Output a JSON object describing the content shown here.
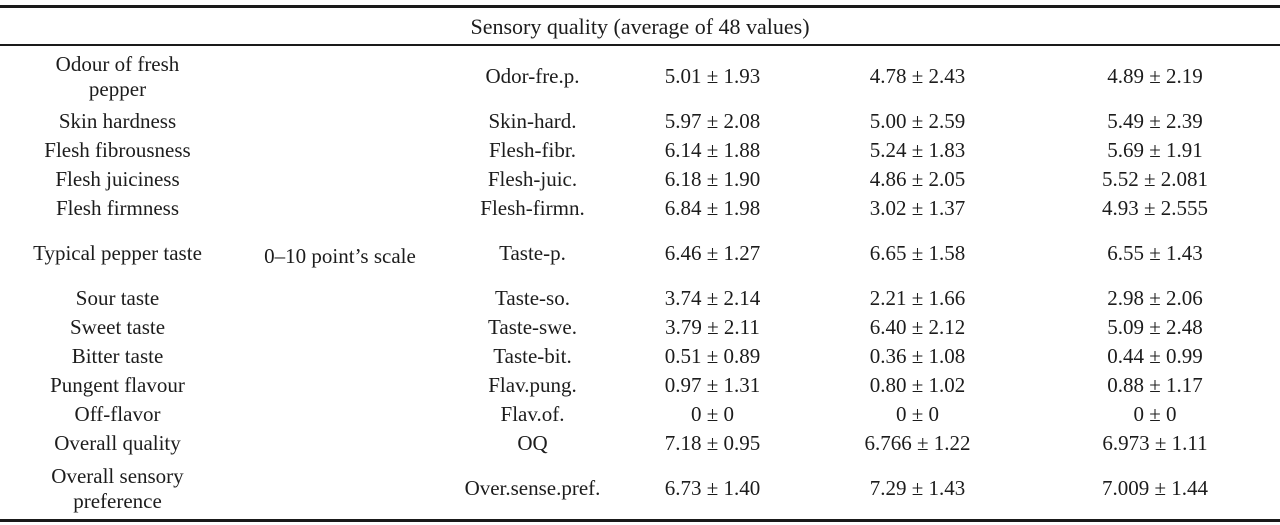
{
  "table": {
    "title": "Sensory quality (average of 48 values)",
    "scale_label": "0–10 point’s scale",
    "rows": [
      {
        "attribute": "Odour of fresh pepper",
        "abbr": "Odor-fre.p.",
        "values": [
          "5.01 ± 1.93",
          "4.78 ± 2.43",
          "4.89 ± 2.19"
        ]
      },
      {
        "attribute": "Skin hardness",
        "abbr": "Skin-hard.",
        "values": [
          "5.97 ± 2.08",
          "5.00 ± 2.59",
          "5.49 ± 2.39"
        ]
      },
      {
        "attribute": "Flesh fibrousness",
        "abbr": "Flesh-fibr.",
        "values": [
          "6.14 ± 1.88",
          "5.24 ± 1.83",
          "5.69 ± 1.91"
        ]
      },
      {
        "attribute": "Flesh juiciness",
        "abbr": "Flesh-juic.",
        "values": [
          "6.18 ± 1.90",
          "4.86 ± 2.05",
          "5.52 ± 2.081"
        ]
      },
      {
        "attribute": "Flesh firmness",
        "abbr": "Flesh-firmn.",
        "values": [
          "6.84 ± 1.98",
          "3.02 ± 1.37",
          "4.93 ± 2.555"
        ]
      },
      {
        "attribute": "Typical pepper taste",
        "abbr": "Taste-p.",
        "values": [
          "6.46 ± 1.27",
          "6.65 ± 1.58",
          "6.55 ± 1.43"
        ]
      },
      {
        "attribute": "Sour taste",
        "abbr": "Taste-so.",
        "values": [
          "3.74 ± 2.14",
          "2.21 ± 1.66",
          "2.98 ± 2.06"
        ]
      },
      {
        "attribute": "Sweet taste",
        "abbr": "Taste-swe.",
        "values": [
          "3.79 ± 2.11",
          "6.40 ± 2.12",
          "5.09 ± 2.48"
        ]
      },
      {
        "attribute": "Bitter taste",
        "abbr": "Taste-bit.",
        "values": [
          "0.51 ± 0.89",
          "0.36 ± 1.08",
          "0.44 ± 0.99"
        ]
      },
      {
        "attribute": "Pungent flavour",
        "abbr": "Flav.pung.",
        "values": [
          "0.97 ± 1.31",
          "0.80 ± 1.02",
          "0.88 ± 1.17"
        ]
      },
      {
        "attribute": "Off-flavor",
        "abbr": "Flav.of.",
        "values": [
          "0 ± 0",
          "0 ± 0",
          "0 ± 0"
        ]
      },
      {
        "attribute": "Overall quality",
        "abbr": "OQ",
        "values": [
          "7.18 ± 0.95",
          "6.766 ± 1.22",
          "6.973 ± 1.11"
        ]
      },
      {
        "attribute": "Overall sensory preference",
        "abbr": "Over.sense.pref.",
        "values": [
          "6.73 ± 1.40",
          "7.29 ± 1.43",
          "7.009 ± 1.44"
        ]
      }
    ],
    "two_line_rows": [
      0,
      5,
      12
    ]
  },
  "colors": {
    "text": "#1c1c1c",
    "rule": "#1a1a1a",
    "background": "#ffffff"
  }
}
